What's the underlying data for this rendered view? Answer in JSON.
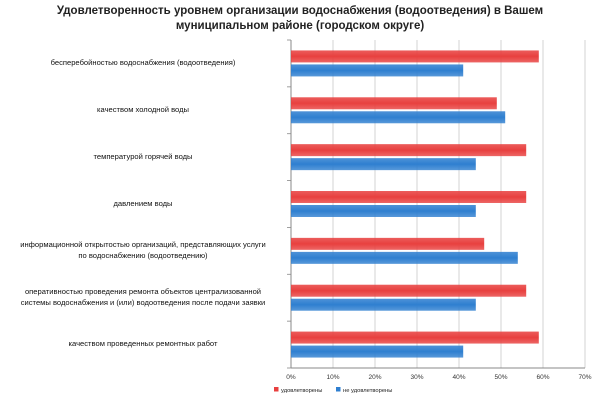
{
  "chart_data": {
    "type": "bar",
    "orientation": "horizontal",
    "title": [
      "Удовлетворенность уровнем организации водоснабжения (водоотведения) в Вашем",
      "муниципальном районе (городском округе)"
    ],
    "categories": [
      [
        "бесперебойностью водоснабжения (водоотведения)"
      ],
      [
        "качеством холодной воды"
      ],
      [
        "температурой горячей воды"
      ],
      [
        "давлением воды"
      ],
      [
        "информационной открытостью организаций, представляющих услуги",
        "по водоснабжению (водоотведению)"
      ],
      [
        "оперативностью проведения  ремонта объектов  централизованной",
        "системы водоснабжения и (или) водоотведения  после подачи заявки"
      ],
      [
        "качеством проведенных ремонтных работ"
      ]
    ],
    "series": [
      {
        "name": "удовлетворены",
        "color": "#e8403f",
        "values": [
          59,
          49,
          56,
          56,
          46,
          56,
          59
        ]
      },
      {
        "name": "не удовлетворены",
        "color": "#2f7fd0",
        "values": [
          41,
          51,
          44,
          44,
          54,
          44,
          41
        ]
      }
    ],
    "xlim": [
      0,
      70
    ],
    "xticks": [
      0,
      10,
      20,
      30,
      40,
      50,
      60,
      70
    ],
    "tick_suffix": "%",
    "grid": true,
    "legend_position": "bottom"
  }
}
